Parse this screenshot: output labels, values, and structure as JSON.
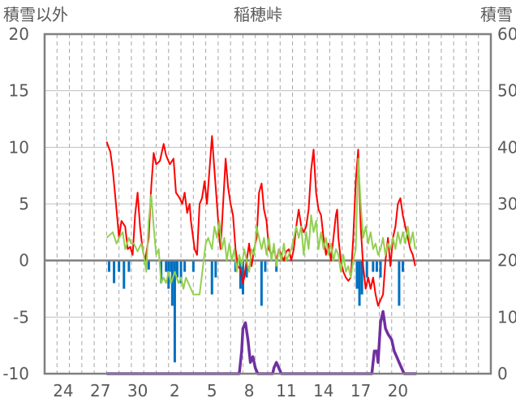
{
  "chart_data": {
    "type": "line",
    "title": "稲穂峠",
    "ylabel_left": "積雪以外",
    "ylabel_right": "積雪",
    "ylim_left": [
      -10,
      20
    ],
    "yticks_left": [
      20,
      15,
      10,
      5,
      0,
      -5,
      -10
    ],
    "ylim_right": [
      0,
      60
    ],
    "yticks_right": [
      60,
      50,
      40,
      30,
      20,
      10,
      0
    ],
    "x_days": 36,
    "x_tick_labels": [
      "24",
      "27",
      "30",
      "2",
      "5",
      "8",
      "11",
      "14",
      "17",
      "20"
    ],
    "x_tick_days": [
      1.5,
      4.5,
      7.5,
      10.5,
      13.5,
      16.5,
      19.5,
      22.5,
      25.5,
      28.5
    ],
    "colors": {
      "temperature": "#ff0000",
      "wind": "#92d050",
      "precipitation": "#0070c0",
      "snow_depth": "#7030a0",
      "zero_line": "#7f7f7f",
      "grid": "#a6a6a6"
    },
    "series": [
      {
        "key": "temperature",
        "axis": "left",
        "points": [
          [
            5.0,
            10.5
          ],
          [
            5.3,
            9.6
          ],
          [
            5.5,
            8.0
          ],
          [
            5.8,
            4.5
          ],
          [
            6.0,
            2.0
          ],
          [
            6.2,
            3.5
          ],
          [
            6.5,
            3.0
          ],
          [
            6.7,
            1.0
          ],
          [
            6.9,
            1.2
          ],
          [
            7.1,
            0.5
          ],
          [
            7.3,
            4.0
          ],
          [
            7.5,
            6.0
          ],
          [
            7.7,
            3.0
          ],
          [
            7.9,
            1.0
          ],
          [
            8.1,
            0.0
          ],
          [
            8.4,
            2.0
          ],
          [
            8.6,
            6.5
          ],
          [
            8.8,
            9.5
          ],
          [
            9.0,
            8.5
          ],
          [
            9.3,
            8.8
          ],
          [
            9.6,
            10.3
          ],
          [
            9.8,
            9.3
          ],
          [
            10.1,
            8.5
          ],
          [
            10.4,
            9.0
          ],
          [
            10.6,
            6.0
          ],
          [
            10.9,
            5.5
          ],
          [
            11.1,
            5.0
          ],
          [
            11.3,
            6.0
          ],
          [
            11.5,
            4.2
          ],
          [
            11.7,
            5.0
          ],
          [
            11.8,
            3.5
          ],
          [
            12.1,
            1.0
          ],
          [
            12.3,
            0.5
          ],
          [
            12.5,
            5.0
          ],
          [
            12.7,
            5.5
          ],
          [
            12.9,
            7.0
          ],
          [
            13.1,
            5.0
          ],
          [
            13.3,
            8.0
          ],
          [
            13.5,
            11.0
          ],
          [
            13.7,
            8.0
          ],
          [
            13.9,
            5.0
          ],
          [
            14.1,
            2.0
          ],
          [
            14.2,
            1.0
          ],
          [
            14.4,
            5.0
          ],
          [
            14.6,
            9.0
          ],
          [
            14.8,
            6.5
          ],
          [
            15.0,
            5.0
          ],
          [
            15.2,
            4.0
          ],
          [
            15.4,
            1.0
          ],
          [
            15.6,
            -0.5
          ],
          [
            15.8,
            -0.8
          ],
          [
            16.0,
            -2.0
          ],
          [
            16.1,
            -1.5
          ],
          [
            16.3,
            0.0
          ],
          [
            16.5,
            1.5
          ],
          [
            16.7,
            -0.5
          ],
          [
            16.9,
            1.0
          ],
          [
            17.1,
            2.0
          ],
          [
            17.3,
            6.0
          ],
          [
            17.5,
            6.8
          ],
          [
            17.7,
            4.5
          ],
          [
            17.9,
            3.5
          ],
          [
            18.1,
            1.0
          ],
          [
            18.3,
            0.5
          ],
          [
            18.5,
            1.0
          ],
          [
            18.7,
            0.0
          ],
          [
            18.9,
            1.0
          ],
          [
            19.1,
            0.5
          ],
          [
            19.3,
            0.0
          ],
          [
            19.5,
            0.8
          ],
          [
            19.7,
            1.0
          ],
          [
            19.9,
            0.0
          ],
          [
            20.1,
            1.0
          ],
          [
            20.3,
            3.0
          ],
          [
            20.5,
            4.5
          ],
          [
            20.7,
            3.0
          ],
          [
            20.9,
            2.5
          ],
          [
            21.1,
            3.0
          ],
          [
            21.3,
            4.5
          ],
          [
            21.5,
            8.0
          ],
          [
            21.7,
            9.8
          ],
          [
            21.9,
            6.0
          ],
          [
            22.1,
            4.5
          ],
          [
            22.3,
            4.0
          ],
          [
            22.5,
            2.0
          ],
          [
            22.7,
            0.5
          ],
          [
            22.9,
            1.5
          ],
          [
            23.1,
            0.0
          ],
          [
            23.3,
            2.0
          ],
          [
            23.5,
            4.0
          ],
          [
            23.6,
            4.5
          ],
          [
            23.7,
            2.0
          ],
          [
            23.9,
            0.0
          ],
          [
            24.1,
            -1.0
          ],
          [
            24.3,
            -1.5
          ],
          [
            24.5,
            -1.8
          ],
          [
            24.7,
            -1.5
          ],
          [
            24.9,
            2.0
          ],
          [
            25.1,
            7.0
          ],
          [
            25.3,
            9.8
          ],
          [
            25.5,
            3.0
          ],
          [
            25.7,
            -0.5
          ],
          [
            25.9,
            -2.5
          ],
          [
            26.1,
            -1.5
          ],
          [
            26.3,
            -2.5
          ],
          [
            26.5,
            -1.5
          ],
          [
            26.7,
            -3.0
          ],
          [
            26.9,
            -4.0
          ],
          [
            27.1,
            -3.5
          ],
          [
            27.3,
            -3.0
          ],
          [
            27.5,
            0.0
          ],
          [
            27.7,
            2.0
          ],
          [
            27.9,
            -0.5
          ],
          [
            28.1,
            2.0
          ],
          [
            28.3,
            3.0
          ],
          [
            28.5,
            5.0
          ],
          [
            28.7,
            5.5
          ],
          [
            28.9,
            4.0
          ],
          [
            29.1,
            3.0
          ],
          [
            29.3,
            2.0
          ],
          [
            29.5,
            1.0
          ],
          [
            29.7,
            0.5
          ],
          [
            29.9,
            -0.5
          ]
        ]
      },
      {
        "key": "wind",
        "axis": "left",
        "points": [
          [
            5.0,
            2.0
          ],
          [
            5.5,
            2.5
          ],
          [
            5.8,
            1.5
          ],
          [
            6.0,
            2.0
          ],
          [
            6.3,
            2.5
          ],
          [
            6.5,
            1.0
          ],
          [
            6.8,
            2.0
          ],
          [
            7.0,
            1.5
          ],
          [
            7.2,
            1.5
          ],
          [
            7.5,
            0.8
          ],
          [
            7.8,
            1.5
          ],
          [
            8.0,
            0.5
          ],
          [
            8.2,
            -1.0
          ],
          [
            8.4,
            3.5
          ],
          [
            8.6,
            5.8
          ],
          [
            8.8,
            3.0
          ],
          [
            9.0,
            0.5
          ],
          [
            9.2,
            1.0
          ],
          [
            9.4,
            -2.0
          ],
          [
            9.6,
            -1.5
          ],
          [
            9.8,
            -2.0
          ],
          [
            10.0,
            -1.0
          ],
          [
            10.2,
            -2.0
          ],
          [
            10.5,
            -1.0
          ],
          [
            10.8,
            -2.0
          ],
          [
            11.0,
            -1.5
          ],
          [
            11.2,
            -2.5
          ],
          [
            11.4,
            -1.5
          ],
          [
            11.6,
            -2.0
          ],
          [
            11.8,
            -2.5
          ],
          [
            12.0,
            -3.0
          ],
          [
            12.5,
            -3.0
          ],
          [
            13.0,
            1.5
          ],
          [
            13.2,
            2.0
          ],
          [
            13.5,
            1.0
          ],
          [
            13.7,
            3.0
          ],
          [
            13.9,
            2.0
          ],
          [
            14.1,
            3.5
          ],
          [
            14.3,
            1.0
          ],
          [
            14.5,
            2.0
          ],
          [
            14.7,
            0.0
          ],
          [
            14.9,
            1.5
          ],
          [
            15.1,
            0.0
          ],
          [
            15.3,
            1.0
          ],
          [
            15.5,
            -1.0
          ],
          [
            15.7,
            0.5
          ],
          [
            15.9,
            -0.5
          ],
          [
            16.1,
            1.0
          ],
          [
            16.3,
            0.0
          ],
          [
            16.5,
            -1.0
          ],
          [
            16.7,
            1.0
          ],
          [
            16.9,
            0.5
          ],
          [
            17.1,
            3.0
          ],
          [
            17.3,
            2.0
          ],
          [
            17.5,
            1.0
          ],
          [
            17.7,
            2.0
          ],
          [
            17.9,
            0.5
          ],
          [
            18.1,
            2.0
          ],
          [
            18.3,
            0.0
          ],
          [
            18.5,
            1.5
          ],
          [
            18.7,
            -0.5
          ],
          [
            18.9,
            1.0
          ],
          [
            19.1,
            0.0
          ],
          [
            19.3,
            1.5
          ],
          [
            19.5,
            0.0
          ],
          [
            19.7,
            0.5
          ],
          [
            19.9,
            1.0
          ],
          [
            20.1,
            2.0
          ],
          [
            20.3,
            3.0
          ],
          [
            20.5,
            2.0
          ],
          [
            20.7,
            3.0
          ],
          [
            20.9,
            0.5
          ],
          [
            21.1,
            2.5
          ],
          [
            21.3,
            1.0
          ],
          [
            21.5,
            4.0
          ],
          [
            21.7,
            2.5
          ],
          [
            21.9,
            3.5
          ],
          [
            22.1,
            1.0
          ],
          [
            22.3,
            2.5
          ],
          [
            22.5,
            1.0
          ],
          [
            22.7,
            2.0
          ],
          [
            22.9,
            0.5
          ],
          [
            23.1,
            1.5
          ],
          [
            23.3,
            0.0
          ],
          [
            23.5,
            1.0
          ],
          [
            23.7,
            0.5
          ],
          [
            23.9,
            -1.0
          ],
          [
            24.1,
            0.5
          ],
          [
            24.3,
            -1.0
          ],
          [
            24.5,
            -0.5
          ],
          [
            24.7,
            -1.5
          ],
          [
            24.9,
            0.0
          ],
          [
            25.1,
            1.0
          ],
          [
            25.3,
            9.0
          ],
          [
            25.5,
            5.0
          ],
          [
            25.7,
            2.0
          ],
          [
            25.9,
            3.0
          ],
          [
            26.1,
            1.5
          ],
          [
            26.3,
            2.5
          ],
          [
            26.5,
            1.0
          ],
          [
            26.7,
            1.5
          ],
          [
            26.9,
            0.5
          ],
          [
            27.1,
            1.0
          ],
          [
            27.3,
            2.0
          ],
          [
            27.5,
            0.5
          ],
          [
            27.7,
            1.5
          ],
          [
            27.9,
            1.0
          ],
          [
            28.1,
            2.0
          ],
          [
            28.3,
            1.0
          ],
          [
            28.5,
            2.5
          ],
          [
            28.7,
            1.5
          ],
          [
            28.9,
            2.5
          ],
          [
            29.1,
            1.5
          ],
          [
            29.3,
            3.0
          ],
          [
            29.5,
            1.5
          ],
          [
            29.7,
            2.5
          ],
          [
            29.9,
            1.0
          ]
        ]
      },
      {
        "key": "snow_depth",
        "axis": "right",
        "points": [
          [
            5.0,
            0
          ],
          [
            15.7,
            0
          ],
          [
            15.9,
            4
          ],
          [
            16.0,
            8
          ],
          [
            16.2,
            9
          ],
          [
            16.4,
            6
          ],
          [
            16.6,
            2
          ],
          [
            16.8,
            3
          ],
          [
            17.0,
            1
          ],
          [
            17.2,
            0
          ],
          [
            18.4,
            0
          ],
          [
            18.5,
            1
          ],
          [
            18.7,
            2
          ],
          [
            18.9,
            1
          ],
          [
            19.1,
            0
          ],
          [
            26.4,
            0
          ],
          [
            26.6,
            4
          ],
          [
            26.8,
            4
          ],
          [
            26.9,
            2
          ],
          [
            27.1,
            9
          ],
          [
            27.3,
            11
          ],
          [
            27.5,
            8
          ],
          [
            27.7,
            7
          ],
          [
            28.0,
            6
          ],
          [
            28.2,
            4
          ],
          [
            28.4,
            3
          ],
          [
            28.6,
            2
          ],
          [
            28.8,
            1
          ],
          [
            29.0,
            0
          ],
          [
            30.0,
            0
          ]
        ]
      }
    ],
    "precipitation_bars": [
      [
        5.2,
        -1.0
      ],
      [
        5.6,
        -2.0
      ],
      [
        6.0,
        -1.0
      ],
      [
        6.4,
        -2.5
      ],
      [
        6.8,
        -1.0
      ],
      [
        8.4,
        -0.8
      ],
      [
        9.4,
        -2.0
      ],
      [
        9.8,
        -1.0
      ],
      [
        10.0,
        -2.5
      ],
      [
        10.2,
        -1.0
      ],
      [
        10.3,
        -4.0
      ],
      [
        10.5,
        -9.0
      ],
      [
        10.7,
        -1.5
      ],
      [
        11.0,
        -2.0
      ],
      [
        11.3,
        -1.0
      ],
      [
        12.0,
        -1.0
      ],
      [
        13.5,
        -3.0
      ],
      [
        13.8,
        -1.5
      ],
      [
        15.4,
        -1.0
      ],
      [
        15.8,
        -2.5
      ],
      [
        16.0,
        -3.0
      ],
      [
        16.3,
        -1.5
      ],
      [
        17.5,
        -4.0
      ],
      [
        17.8,
        -1.0
      ],
      [
        18.7,
        -1.0
      ],
      [
        25.2,
        -2.5
      ],
      [
        25.4,
        -4.0
      ],
      [
        25.6,
        -3.0
      ],
      [
        26.0,
        -1.5
      ],
      [
        26.5,
        -1.0
      ],
      [
        26.8,
        -1.0
      ],
      [
        27.1,
        -1.5
      ],
      [
        28.6,
        -4.0
      ],
      [
        28.9,
        -1.0
      ]
    ]
  }
}
